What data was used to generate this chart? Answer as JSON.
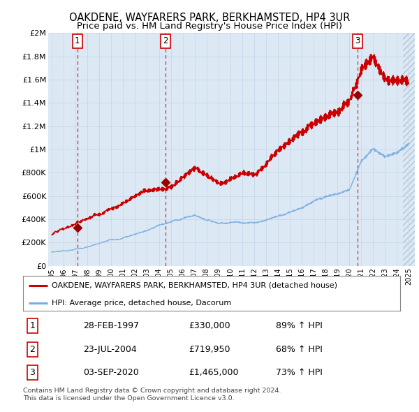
{
  "title": "OAKDENE, WAYFARERS PARK, BERKHAMSTED, HP4 3UR",
  "subtitle": "Price paid vs. HM Land Registry's House Price Index (HPI)",
  "title_fontsize": 10.5,
  "subtitle_fontsize": 9.5,
  "background_color": "#ffffff",
  "plot_background_color": "#dce9f5",
  "grid_color": "#c8d8e8",
  "red_line_color": "#cc0000",
  "blue_line_color": "#7aade0",
  "sale_marker_color": "#990000",
  "vline_color": "#cc0000",
  "ylim": [
    0,
    2000000
  ],
  "ytick_labels": [
    "£0",
    "£200K",
    "£400K",
    "£600K",
    "£800K",
    "£1M",
    "£1.2M",
    "£1.4M",
    "£1.6M",
    "£1.8M",
    "£2M"
  ],
  "ytick_values": [
    0,
    200000,
    400000,
    600000,
    800000,
    1000000,
    1200000,
    1400000,
    1600000,
    1800000,
    2000000
  ],
  "sales": [
    {
      "year": 1997.15,
      "price": 330000,
      "label": "1"
    },
    {
      "year": 2004.56,
      "price": 719950,
      "label": "2"
    },
    {
      "year": 2020.67,
      "price": 1465000,
      "label": "3"
    }
  ],
  "legend_entries": [
    "OAKDENE, WAYFARERS PARK, BERKHAMSTED, HP4 3UR (detached house)",
    "HPI: Average price, detached house, Dacorum"
  ],
  "table_rows": [
    {
      "num": "1",
      "date": "28-FEB-1997",
      "price": "£330,000",
      "hpi": "89% ↑ HPI"
    },
    {
      "num": "2",
      "date": "23-JUL-2004",
      "price": "£719,950",
      "hpi": "68% ↑ HPI"
    },
    {
      "num": "3",
      "date": "03-SEP-2020",
      "price": "£1,465,000",
      "hpi": "73% ↑ HPI"
    }
  ],
  "footnote": "Contains HM Land Registry data © Crown copyright and database right 2024.\nThis data is licensed under the Open Government Licence v3.0.",
  "hpi_anchors_x": [
    1995,
    1996,
    1997,
    1998,
    1999,
    2000,
    2001,
    2002,
    2003,
    2004,
    2005,
    2006,
    2007,
    2008,
    2009,
    2010,
    2011,
    2012,
    2013,
    2014,
    2015,
    2016,
    2017,
    2018,
    2019,
    2020,
    2021,
    2022,
    2023,
    2024,
    2025
  ],
  "hpi_anchors_v": [
    118000,
    130000,
    145000,
    163000,
    183000,
    210000,
    235000,
    265000,
    300000,
    340000,
    365000,
    395000,
    420000,
    385000,
    360000,
    370000,
    375000,
    375000,
    400000,
    435000,
    475000,
    520000,
    560000,
    590000,
    610000,
    640000,
    900000,
    1000000,
    940000,
    970000,
    1050000
  ],
  "red_anchors_x": [
    1995,
    1996,
    1997,
    1998,
    1999,
    2000,
    2001,
    2002,
    2003,
    2004,
    2005,
    2006,
    2007,
    2008,
    2009,
    2010,
    2011,
    2012,
    2013,
    2014,
    2015,
    2016,
    2017,
    2018,
    2019,
    2020,
    2021,
    2022,
    2023,
    2024,
    2025
  ],
  "red_anchors_v": [
    265000,
    290000,
    330000,
    375000,
    430000,
    500000,
    560000,
    630000,
    680000,
    720000,
    740000,
    810000,
    860000,
    790000,
    730000,
    770000,
    800000,
    820000,
    900000,
    1050000,
    1160000,
    1250000,
    1310000,
    1360000,
    1390000,
    1465000,
    1720000,
    1850000,
    1630000,
    1600000,
    1570000
  ]
}
